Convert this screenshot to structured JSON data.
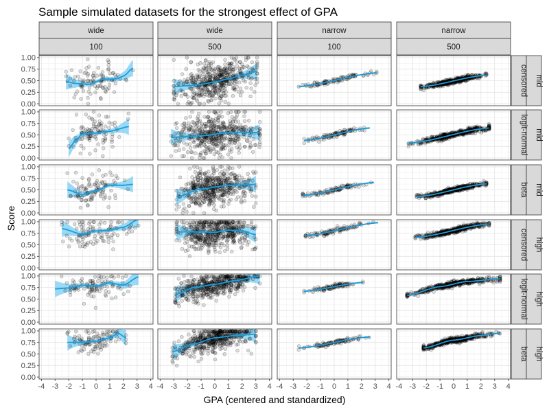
{
  "chart_data": {
    "type": "scatter",
    "title": "Sample simulated datasets for the strongest effect of GPA",
    "xlabel": "GPA (centered and standardized)",
    "ylabel": "Score",
    "xlim": [
      -4,
      4
    ],
    "ylim": [
      0,
      1
    ],
    "x_ticks": [
      "-4",
      "-3",
      "-2",
      "-1",
      "0",
      "1",
      "2",
      "3",
      "4"
    ],
    "y_ticks": [
      "0.00",
      "0.25",
      "0.50",
      "0.75",
      "1.00"
    ],
    "grid": true,
    "smooth_color": "#1e9bd7",
    "band_color": "#56c2f0",
    "point_color": "#000000",
    "facet_columns": [
      {
        "spread": "wide",
        "n": "100"
      },
      {
        "spread": "wide",
        "n": "500"
      },
      {
        "spread": "narrow",
        "n": "100"
      },
      {
        "spread": "narrow",
        "n": "500"
      }
    ],
    "facet_rows": [
      {
        "level": "mid",
        "model": "censored"
      },
      {
        "level": "mid",
        "model": "logit-normal"
      },
      {
        "level": "mid",
        "model": "beta"
      },
      {
        "level": "high",
        "model": "censored"
      },
      {
        "level": "high",
        "model": "logit-normal"
      },
      {
        "level": "high",
        "model": "beta"
      }
    ],
    "panels": [
      {
        "row": 0,
        "col": 0,
        "x_range": [
          -2.2,
          2.7
        ],
        "spread": 0.18,
        "smooth": {
          "x": [
            -2.2,
            -1.5,
            -0.5,
            0.5,
            1.5,
            2.0,
            2.7
          ],
          "y": [
            0.48,
            0.44,
            0.42,
            0.53,
            0.54,
            0.6,
            0.77
          ]
        }
      },
      {
        "row": 0,
        "col": 1,
        "x_range": [
          -3.0,
          3.1
        ],
        "spread": 0.22,
        "smooth": {
          "x": [
            -3.0,
            -2.0,
            -1.0,
            0.0,
            1.0,
            2.0,
            3.1
          ],
          "y": [
            0.37,
            0.39,
            0.42,
            0.47,
            0.54,
            0.62,
            0.7
          ]
        }
      },
      {
        "row": 0,
        "col": 2,
        "x_range": [
          -2.6,
          3.1
        ],
        "spread": 0.025,
        "smooth": {
          "x": [
            -2.6,
            3.1
          ],
          "y": [
            0.37,
            0.67
          ]
        }
      },
      {
        "row": 0,
        "col": 3,
        "x_range": [
          -2.4,
          2.4
        ],
        "spread": 0.025,
        "smooth": {
          "x": [
            -2.4,
            2.4
          ],
          "y": [
            0.37,
            0.62
          ]
        }
      },
      {
        "row": 1,
        "col": 0,
        "x_range": [
          -2.0,
          2.4
        ],
        "spread": 0.18,
        "smooth": {
          "x": [
            -2.0,
            -1.5,
            -1.0,
            0.0,
            1.0,
            2.4
          ],
          "y": [
            0.2,
            0.38,
            0.52,
            0.54,
            0.58,
            0.68
          ]
        }
      },
      {
        "row": 1,
        "col": 1,
        "x_range": [
          -3.2,
          3.3
        ],
        "spread": 0.22,
        "smooth": {
          "x": [
            -3.2,
            -1.0,
            1.0,
            3.3
          ],
          "y": [
            0.45,
            0.48,
            0.55,
            0.55
          ]
        }
      },
      {
        "row": 1,
        "col": 2,
        "x_range": [
          -2.2,
          2.6
        ],
        "spread": 0.03,
        "smooth": {
          "x": [
            -2.2,
            2.6
          ],
          "y": [
            0.38,
            0.65
          ]
        }
      },
      {
        "row": 1,
        "col": 3,
        "x_range": [
          -3.3,
          2.6
        ],
        "spread": 0.03,
        "smooth": {
          "x": [
            -3.3,
            2.6
          ],
          "y": [
            0.32,
            0.65
          ]
        }
      },
      {
        "row": 2,
        "col": 0,
        "x_range": [
          -2.1,
          2.7
        ],
        "spread": 0.17,
        "smooth": {
          "x": [
            -2.1,
            -1.0,
            0.0,
            1.0,
            2.0,
            2.7
          ],
          "y": [
            0.5,
            0.4,
            0.48,
            0.6,
            0.6,
            0.62
          ]
        }
      },
      {
        "row": 2,
        "col": 1,
        "x_range": [
          -2.8,
          3.0
        ],
        "spread": 0.2,
        "smooth": {
          "x": [
            -2.8,
            -1.0,
            1.0,
            3.0
          ],
          "y": [
            0.35,
            0.52,
            0.6,
            0.62
          ]
        }
      },
      {
        "row": 2,
        "col": 2,
        "x_range": [
          -2.3,
          2.9
        ],
        "spread": 0.025,
        "smooth": {
          "x": [
            -2.3,
            2.9
          ],
          "y": [
            0.38,
            0.66
          ]
        }
      },
      {
        "row": 2,
        "col": 3,
        "x_range": [
          -2.7,
          2.4
        ],
        "spread": 0.025,
        "smooth": {
          "x": [
            -2.7,
            2.4
          ],
          "y": [
            0.35,
            0.63
          ]
        }
      },
      {
        "row": 3,
        "col": 0,
        "x_range": [
          -2.5,
          3.1
        ],
        "spread": 0.18,
        "smooth": {
          "x": [
            -2.5,
            -1.0,
            0.0,
            1.0,
            2.0,
            3.1
          ],
          "y": [
            0.85,
            0.73,
            0.8,
            0.82,
            0.88,
            1.05
          ]
        }
      },
      {
        "row": 3,
        "col": 1,
        "x_range": [
          -2.8,
          3.0
        ],
        "spread": 0.18,
        "smooth": {
          "x": [
            -2.8,
            -1.0,
            0.0,
            1.0,
            2.0,
            3.0
          ],
          "y": [
            0.78,
            0.78,
            0.77,
            0.82,
            0.8,
            0.72
          ]
        }
      },
      {
        "row": 3,
        "col": 2,
        "x_range": [
          -2.1,
          3.2
        ],
        "spread": 0.025,
        "smooth": {
          "x": [
            -2.1,
            3.2
          ],
          "y": [
            0.7,
            0.98
          ]
        }
      },
      {
        "row": 3,
        "col": 3,
        "x_range": [
          -2.8,
          2.6
        ],
        "spread": 0.025,
        "smooth": {
          "x": [
            -2.8,
            2.6
          ],
          "y": [
            0.66,
            0.95
          ]
        }
      },
      {
        "row": 4,
        "col": 0,
        "x_range": [
          -3.0,
          3.1
        ],
        "spread": 0.13,
        "smooth": {
          "x": [
            -3.0,
            -2.0,
            -1.0,
            0.0,
            1.0,
            2.0,
            3.1
          ],
          "y": [
            0.72,
            0.74,
            0.8,
            0.78,
            0.85,
            0.8,
            0.98
          ]
        }
      },
      {
        "row": 4,
        "col": 1,
        "x_range": [
          -2.9,
          3.3
        ],
        "spread": 0.14,
        "smooth": {
          "x": [
            -2.9,
            -1.5,
            0.0,
            1.5,
            3.3
          ],
          "y": [
            0.6,
            0.75,
            0.82,
            0.9,
            1.0
          ]
        }
      },
      {
        "row": 4,
        "col": 2,
        "x_range": [
          -2.2,
          2.1
        ],
        "spread": 0.025,
        "smooth": {
          "x": [
            -2.2,
            2.1
          ],
          "y": [
            0.67,
            0.86
          ]
        }
      },
      {
        "row": 4,
        "col": 3,
        "x_range": [
          -3.4,
          3.4
        ],
        "spread": 0.025,
        "smooth": {
          "x": [
            -3.4,
            -1.0,
            1.0,
            3.4
          ],
          "y": [
            0.58,
            0.77,
            0.88,
            0.94
          ]
        }
      },
      {
        "row": 5,
        "col": 0,
        "x_range": [
          -2.1,
          2.2
        ],
        "spread": 0.14,
        "smooth": {
          "x": [
            -2.1,
            -1.0,
            0.0,
            1.0,
            1.6,
            2.2
          ],
          "y": [
            0.75,
            0.75,
            0.78,
            0.85,
            0.95,
            0.85
          ]
        }
      },
      {
        "row": 5,
        "col": 1,
        "x_range": [
          -3.1,
          3.0
        ],
        "spread": 0.14,
        "smooth": {
          "x": [
            -3.1,
            -1.5,
            0.0,
            1.5,
            3.0
          ],
          "y": [
            0.55,
            0.72,
            0.85,
            0.9,
            0.93
          ]
        }
      },
      {
        "row": 5,
        "col": 2,
        "x_range": [
          -2.6,
          2.6
        ],
        "spread": 0.025,
        "smooth": {
          "x": [
            -2.6,
            2.6
          ],
          "y": [
            0.63,
            0.87
          ]
        }
      },
      {
        "row": 5,
        "col": 3,
        "x_range": [
          -2.2,
          3.4
        ],
        "spread": 0.025,
        "smooth": {
          "x": [
            -2.2,
            0.0,
            2.0,
            3.4
          ],
          "y": [
            0.63,
            0.8,
            0.9,
            0.95
          ]
        }
      }
    ]
  }
}
